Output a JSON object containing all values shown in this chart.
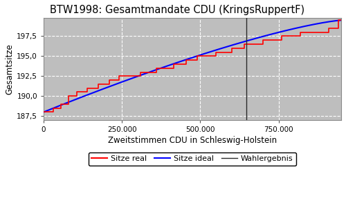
{
  "title": "BTW1998: Gesamtmandate CDU (KringsRuppertF)",
  "xlabel": "Zweitstimmen CDU in Schleswig-Holstein",
  "ylabel": "Gesamtsitze",
  "bg_color": "#bebebe",
  "x_min": 0,
  "x_max": 950000,
  "y_min": 187.0,
  "y_max": 199.8,
  "wahlergebnis_x": 648000,
  "yticks": [
    187.5,
    190.0,
    192.5,
    195.0,
    197.5
  ],
  "xticks": [
    0,
    250000,
    500000,
    750000
  ],
  "legend_labels": [
    "Sitze real",
    "Sitze ideal",
    "Wahlergebnis"
  ],
  "grid_color": "white",
  "grid_style": "--",
  "ideal_start_y": 188.0,
  "ideal_end_y": 199.2,
  "real_steps_x": [
    0,
    30000,
    55000,
    80000,
    105000,
    140000,
    175000,
    210000,
    240000,
    270000,
    310000,
    360000,
    415000,
    455000,
    490000,
    520000,
    550000,
    600000,
    640000,
    700000,
    760000,
    820000,
    870000,
    910000,
    940000
  ],
  "real_steps_y": [
    188.0,
    188.5,
    189.0,
    190.0,
    190.5,
    191.0,
    191.5,
    192.0,
    192.5,
    192.5,
    193.0,
    193.5,
    194.0,
    194.5,
    195.0,
    195.0,
    195.5,
    196.0,
    196.5,
    197.0,
    197.5,
    198.0,
    198.0,
    198.5,
    199.5
  ]
}
